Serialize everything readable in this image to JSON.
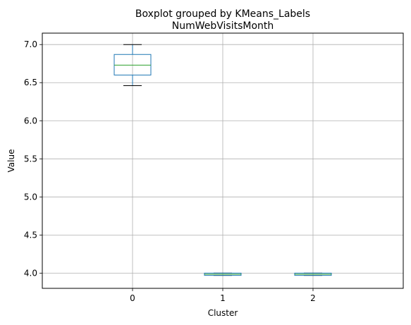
{
  "chart_data": {
    "type": "boxplot",
    "suptitle": "Boxplot grouped by KMeans_Labels",
    "title": "NumWebVisitsMonth",
    "xlabel": "Cluster",
    "ylabel": "Value",
    "categories": [
      "0",
      "1",
      "2"
    ],
    "ylim": [
      3.8,
      7.15
    ],
    "yticks": [
      4.0,
      4.5,
      5.0,
      5.5,
      6.0,
      6.5,
      7.0
    ],
    "ytick_labels": [
      "4.0",
      "4.5",
      "5.0",
      "5.5",
      "6.0",
      "6.5",
      "7.0"
    ],
    "grid": true,
    "boxes": [
      {
        "category": "0",
        "whisker_low": 6.46,
        "q1": 6.6,
        "median": 6.73,
        "q3": 6.87,
        "whisker_high": 7.0
      },
      {
        "category": "1",
        "whisker_low": 3.97,
        "q1": 3.97,
        "median": 3.985,
        "q3": 4.0,
        "whisker_high": 4.0
      },
      {
        "category": "2",
        "whisker_low": 3.97,
        "q1": 3.97,
        "median": 3.985,
        "q3": 4.0,
        "whisker_high": 4.0
      }
    ],
    "colors": {
      "box": "#1f77b4",
      "median": "#2ca02c",
      "whisker": "#000000",
      "grid": "#b0b0b0"
    }
  }
}
